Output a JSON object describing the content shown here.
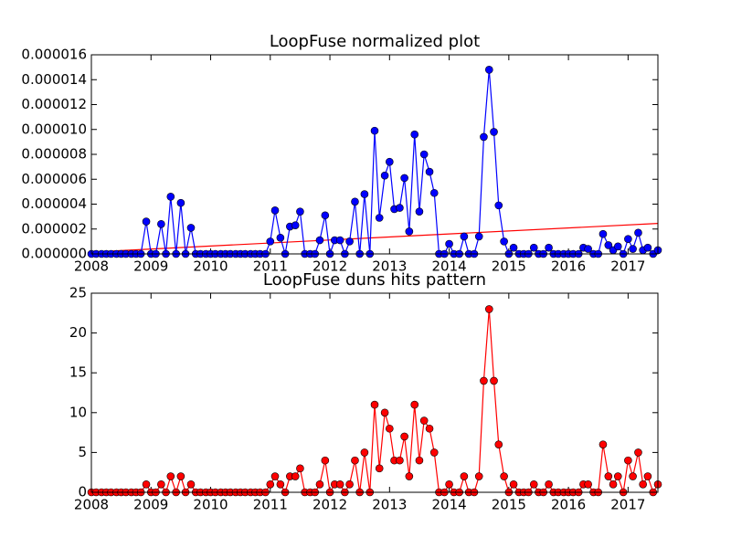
{
  "chart_data": [
    {
      "type": "line",
      "title": "LoopFuse normalized plot",
      "x": [
        2008,
        2008.08,
        2008.17,
        2008.25,
        2008.33,
        2008.42,
        2008.5,
        2008.58,
        2008.67,
        2008.75,
        2008.83,
        2008.92,
        2009,
        2009.08,
        2009.17,
        2009.25,
        2009.33,
        2009.42,
        2009.5,
        2009.58,
        2009.67,
        2009.75,
        2009.83,
        2009.92,
        2010,
        2010.08,
        2010.17,
        2010.25,
        2010.33,
        2010.42,
        2010.5,
        2010.58,
        2010.67,
        2010.75,
        2010.83,
        2010.92,
        2011,
        2011.08,
        2011.17,
        2011.25,
        2011.33,
        2011.42,
        2011.5,
        2011.58,
        2011.67,
        2011.75,
        2011.83,
        2011.92,
        2012,
        2012.08,
        2012.17,
        2012.25,
        2012.33,
        2012.42,
        2012.5,
        2012.58,
        2012.67,
        2012.75,
        2012.83,
        2012.92,
        2013,
        2013.08,
        2013.17,
        2013.25,
        2013.33,
        2013.42,
        2013.5,
        2013.58,
        2013.67,
        2013.75,
        2013.83,
        2013.92,
        2014,
        2014.08,
        2014.17,
        2014.25,
        2014.33,
        2014.42,
        2014.5,
        2014.58,
        2014.67,
        2014.75,
        2014.83,
        2014.92,
        2015,
        2015.08,
        2015.17,
        2015.25,
        2015.33,
        2015.42,
        2015.5,
        2015.58,
        2015.67,
        2015.75,
        2015.83,
        2015.92,
        2016,
        2016.08,
        2016.17,
        2016.25,
        2016.33,
        2016.42,
        2016.5,
        2016.58,
        2016.67,
        2016.75,
        2016.83,
        2016.92,
        2017,
        2017.08,
        2017.17,
        2017.25,
        2017.33,
        2017.42,
        2017.5
      ],
      "series": [
        {
          "name": "normalized",
          "color": "#0000ff",
          "values": [
            0,
            0,
            0,
            0,
            0,
            0,
            0,
            0,
            0,
            0,
            0,
            2.6e-06,
            0,
            0,
            2.4e-06,
            0,
            4.6e-06,
            0,
            4.1e-06,
            0,
            2.1e-06,
            0,
            0,
            0,
            0,
            0,
            0,
            0,
            0,
            0,
            0,
            0,
            0,
            0,
            0,
            0,
            1e-06,
            3.5e-06,
            1.3e-06,
            0,
            2.2e-06,
            2.3e-06,
            3.4e-06,
            0,
            0,
            0,
            1.1e-06,
            3.1e-06,
            0,
            1.1e-06,
            1.1e-06,
            0,
            1e-06,
            4.2e-06,
            0,
            4.8e-06,
            0,
            9.9e-06,
            2.9e-06,
            6.3e-06,
            7.4e-06,
            3.6e-06,
            3.7e-06,
            6.1e-06,
            1.8e-06,
            9.6e-06,
            3.4e-06,
            8e-06,
            6.6e-06,
            4.9e-06,
            0,
            0,
            8e-07,
            0,
            0,
            1.4e-06,
            0,
            0,
            1.4e-06,
            9.4e-06,
            1.48e-05,
            9.8e-06,
            3.9e-06,
            1e-06,
            0,
            5e-07,
            0,
            0,
            0,
            5e-07,
            0,
            0,
            5e-07,
            0,
            0,
            0,
            0,
            0,
            0,
            5e-07,
            4e-07,
            0,
            0,
            1.6e-06,
            7e-07,
            3e-07,
            6e-07,
            0,
            1.2e-06,
            4e-07,
            1.7e-06,
            3e-07,
            5e-07,
            0,
            3e-07
          ]
        }
      ],
      "trend": {
        "x": [
          2008,
          2017.5
        ],
        "values": [
          1.5e-07,
          2.45e-06
        ],
        "color": "#ff0000"
      },
      "xlim": [
        2008,
        2017.5
      ],
      "xticks": [
        2008,
        2009,
        2010,
        2011,
        2012,
        2013,
        2014,
        2015,
        2016,
        2017
      ],
      "ylim": [
        0,
        1.6e-05
      ],
      "yticks": [
        {
          "value": 0,
          "label": "0.000000"
        },
        {
          "value": 2e-06,
          "label": "0.000002"
        },
        {
          "value": 4e-06,
          "label": "0.000004"
        },
        {
          "value": 6e-06,
          "label": "0.000006"
        },
        {
          "value": 8e-06,
          "label": "0.000008"
        },
        {
          "value": 1e-05,
          "label": "0.000010"
        },
        {
          "value": 1.2e-05,
          "label": "0.000012"
        },
        {
          "value": 1.4e-05,
          "label": "0.000014"
        },
        {
          "value": 1.6e-05,
          "label": "0.000016"
        }
      ]
    },
    {
      "type": "line",
      "title": "LoopFuse duns hits pattern",
      "x": [
        2008,
        2008.08,
        2008.17,
        2008.25,
        2008.33,
        2008.42,
        2008.5,
        2008.58,
        2008.67,
        2008.75,
        2008.83,
        2008.92,
        2009,
        2009.08,
        2009.17,
        2009.25,
        2009.33,
        2009.42,
        2009.5,
        2009.58,
        2009.67,
        2009.75,
        2009.83,
        2009.92,
        2010,
        2010.08,
        2010.17,
        2010.25,
        2010.33,
        2010.42,
        2010.5,
        2010.58,
        2010.67,
        2010.75,
        2010.83,
        2010.92,
        2011,
        2011.08,
        2011.17,
        2011.25,
        2011.33,
        2011.42,
        2011.5,
        2011.58,
        2011.67,
        2011.75,
        2011.83,
        2011.92,
        2012,
        2012.08,
        2012.17,
        2012.25,
        2012.33,
        2012.42,
        2012.5,
        2012.58,
        2012.67,
        2012.75,
        2012.83,
        2012.92,
        2013,
        2013.08,
        2013.17,
        2013.25,
        2013.33,
        2013.42,
        2013.5,
        2013.58,
        2013.67,
        2013.75,
        2013.83,
        2013.92,
        2014,
        2014.08,
        2014.17,
        2014.25,
        2014.33,
        2014.42,
        2014.5,
        2014.58,
        2014.67,
        2014.75,
        2014.83,
        2014.92,
        2015,
        2015.08,
        2015.17,
        2015.25,
        2015.33,
        2015.42,
        2015.5,
        2015.58,
        2015.67,
        2015.75,
        2015.83,
        2015.92,
        2016,
        2016.08,
        2016.17,
        2016.25,
        2016.33,
        2016.42,
        2016.5,
        2016.58,
        2016.67,
        2016.75,
        2016.83,
        2016.92,
        2017,
        2017.08,
        2017.17,
        2017.25,
        2017.33,
        2017.42,
        2017.5
      ],
      "series": [
        {
          "name": "hits",
          "color": "#ff0000",
          "values": [
            0,
            0,
            0,
            0,
            0,
            0,
            0,
            0,
            0,
            0,
            0,
            1,
            0,
            0,
            1,
            0,
            2,
            0,
            2,
            0,
            1,
            0,
            0,
            0,
            0,
            0,
            0,
            0,
            0,
            0,
            0,
            0,
            0,
            0,
            0,
            0,
            1,
            2,
            1,
            0,
            2,
            2,
            3,
            0,
            0,
            0,
            1,
            4,
            0,
            1,
            1,
            0,
            1,
            4,
            0,
            5,
            0,
            11,
            3,
            10,
            8,
            4,
            4,
            7,
            2,
            11,
            4,
            9,
            8,
            5,
            0,
            0,
            1,
            0,
            0,
            2,
            0,
            0,
            2,
            14,
            23,
            14,
            6,
            2,
            0,
            1,
            0,
            0,
            0,
            1,
            0,
            0,
            1,
            0,
            0,
            0,
            0,
            0,
            0,
            1,
            1,
            0,
            0,
            6,
            2,
            1,
            2,
            0,
            4,
            2,
            5,
            1,
            2,
            0,
            1
          ]
        }
      ],
      "xlim": [
        2008,
        2017.5
      ],
      "xticks": [
        2008,
        2009,
        2010,
        2011,
        2012,
        2013,
        2014,
        2015,
        2016,
        2017
      ],
      "ylim": [
        0,
        25
      ],
      "yticks": [
        0,
        5,
        10,
        15,
        20,
        25
      ]
    }
  ]
}
